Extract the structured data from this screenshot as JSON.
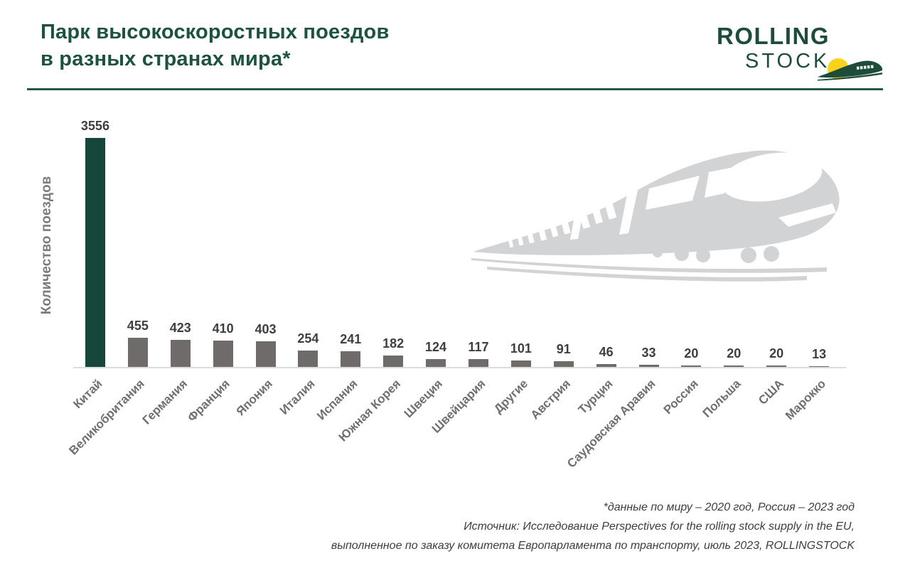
{
  "header": {
    "title_line1": "Парк высокоскоростных поездов",
    "title_line2": "в разных странах мира*",
    "logo": {
      "line1": "ROLLING",
      "line2": "STOCK"
    }
  },
  "chart_data": {
    "type": "bar",
    "title": "Парк высокоскоростных поездов в разных странах мира*",
    "xlabel": "",
    "ylabel": "Количество поездов",
    "categories": [
      "Китай",
      "Великобритания",
      "Германия",
      "Франция",
      "Япония",
      "Италия",
      "Испания",
      "Южная Корея",
      "Швеция",
      "Швейцария",
      "Другие",
      "Австрия",
      "Турция",
      "Саудовская Аравия",
      "Россия",
      "Польша",
      "США",
      "Марокко"
    ],
    "values": [
      3556,
      455,
      423,
      410,
      403,
      254,
      241,
      182,
      124,
      117,
      101,
      91,
      46,
      33,
      20,
      20,
      20,
      13
    ],
    "ylim": [
      0,
      3556
    ],
    "grid": false,
    "legend": "none",
    "highlight_index": 0,
    "bar_color_highlight": "#17463a",
    "bar_color_default": "#6f6b6b",
    "footnote_line1": "*данные по миру – 2020 год, Россия – 2023 год",
    "footnote_line2": "Источник: Исследование Perspectives for the rolling stock supply in the EU,",
    "footnote_line3": "выполненное по заказу комитета Европарламента по транспорту, июль 2023, ROLLINGSTOCK"
  },
  "colors": {
    "accent_green": "#1d5240",
    "logo_green": "#1d4c3b",
    "bar_green": "#17463a",
    "bar_gray": "#6f6b6b",
    "value_label": "#3e3e3e",
    "x_label_gray": "#6f6f6f",
    "y_label_gray": "#7a7a7a",
    "watermark_gray": "#d2d3d5",
    "logo_yellow": "#f8d21b",
    "axis_line": "#dcdcdc"
  }
}
